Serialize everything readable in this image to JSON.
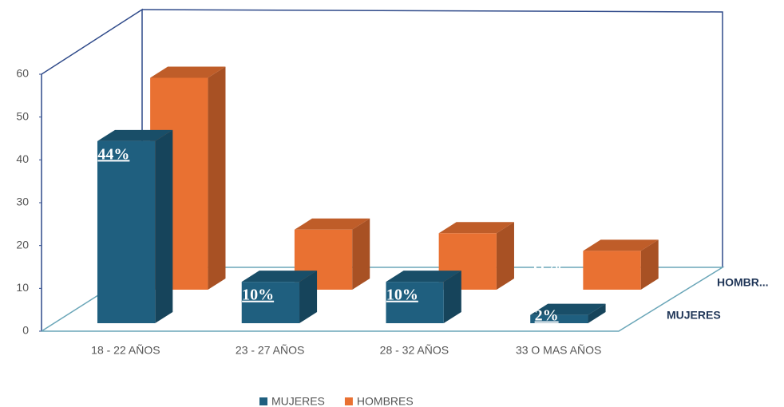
{
  "chart_data": {
    "type": "bar3d",
    "categories": [
      "18 - 22 AÑOS",
      "23 - 27 AÑOS",
      "28 - 32 AÑOS",
      "33 O MAS AÑOS"
    ],
    "series": [
      {
        "name": "MUJERES",
        "color": "#1f5f7f",
        "values": [
          44,
          10,
          10,
          2
        ],
        "value_labels": [
          "44%",
          "10%",
          "10%",
          "2%"
        ]
      },
      {
        "name": "HOMBRES",
        "color": "#e97132",
        "values": [
          60,
          17,
          16,
          11
        ],
        "value_labels": [
          null,
          "17%",
          "16%",
          "11%"
        ]
      }
    ],
    "depth_labels": [
      "MUJERES",
      "HOMBR..."
    ],
    "ylim": [
      0,
      60
    ],
    "yticks": [
      0,
      10,
      20,
      30,
      40,
      50,
      60
    ],
    "legend": "bottom"
  }
}
